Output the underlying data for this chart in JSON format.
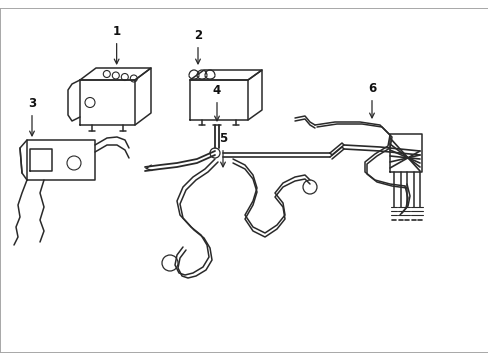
{
  "bg_color": "#ffffff",
  "line_color": "#2a2a2a",
  "text_color": "#111111",
  "figsize": [
    4.89,
    3.6
  ],
  "dpi": 100,
  "lw": 1.1
}
